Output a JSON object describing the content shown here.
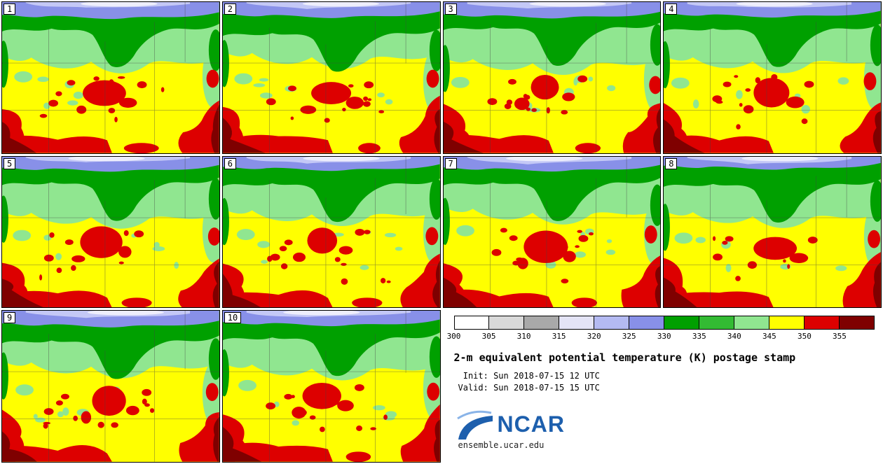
{
  "panels": [
    {
      "label": "1"
    },
    {
      "label": "2"
    },
    {
      "label": "3"
    },
    {
      "label": "4"
    },
    {
      "label": "5"
    },
    {
      "label": "6"
    },
    {
      "label": "7"
    },
    {
      "label": "8"
    },
    {
      "label": "9"
    },
    {
      "label": "10"
    }
  ],
  "colorbar": {
    "ticks": [
      "300",
      "305",
      "310",
      "315",
      "320",
      "325",
      "330",
      "335",
      "340",
      "345",
      "350",
      "355"
    ],
    "colors": [
      "#ffffff",
      "#d9d9d9",
      "#a9a9a9",
      "#e4e4f6",
      "#b4baf2",
      "#8890e8",
      "#00a000",
      "#33bb33",
      "#90e690",
      "#ffff00",
      "#dd0000",
      "#7f0000"
    ]
  },
  "legend": {
    "title": "2-m equivalent potential temperature (K) postage stamp",
    "init_line": " Init: Sun 2018-07-15 12 UTC",
    "valid_line": "Valid: Sun 2018-07-15 15 UTC",
    "brand_text": "NCAR",
    "site_url": "ensemble.ucar.edu",
    "brand_color": "#1d5fad"
  },
  "map_colors": {
    "pale": "#eeeefc",
    "lt_blue": "#c4c8f6",
    "blue": "#8890e8",
    "green": "#00a000",
    "lt_green": "#90e690",
    "yellow": "#ffff00",
    "red": "#dd0000",
    "dk_red": "#7f0000",
    "line": "#444444"
  }
}
